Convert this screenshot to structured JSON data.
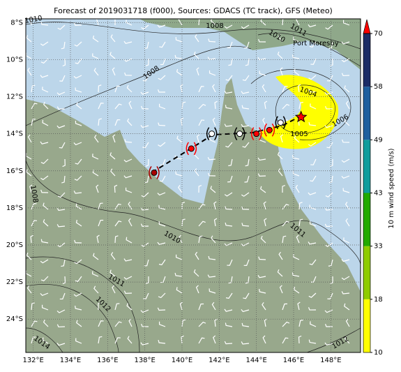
{
  "title": "Forecast of 2019031718 (f000), Sources: GDACS (TC track), GFS (Meteo)",
  "map": {
    "lonlim": [
      131.6,
      149.6
    ],
    "latlim": [
      -7.8,
      -25.8
    ],
    "grid": true,
    "lonticks": [
      {
        "value": 132,
        "label": "132°E"
      },
      {
        "value": 134,
        "label": "134°E"
      },
      {
        "value": 136,
        "label": "136°E"
      },
      {
        "value": 138,
        "label": "138°E"
      },
      {
        "value": 140,
        "label": "140°E"
      },
      {
        "value": 142,
        "label": "142°E"
      },
      {
        "value": 144,
        "label": "144°E"
      },
      {
        "value": 146,
        "label": "146°E"
      },
      {
        "value": 148,
        "label": "148°E"
      }
    ],
    "latticks": [
      {
        "value": -8,
        "label": "8°S"
      },
      {
        "value": -10,
        "label": "10°S"
      },
      {
        "value": -12,
        "label": "12°S"
      },
      {
        "value": -14,
        "label": "14°S"
      },
      {
        "value": -16,
        "label": "16°S"
      },
      {
        "value": -18,
        "label": "18°S"
      },
      {
        "value": -20,
        "label": "20°S"
      },
      {
        "value": -22,
        "label": "22°S"
      },
      {
        "value": -24,
        "label": "24°S"
      }
    ]
  },
  "colorbar": {
    "label": "10 m wind speed (m/s)",
    "ticks": [
      10,
      18,
      33,
      43,
      49,
      58,
      70
    ],
    "colors": [
      "#ffff00",
      "#8fcc00",
      "#22aa00",
      "#119c9c",
      "#1f5f9e",
      "#1c2c66"
    ],
    "extend_color": "#ff0000"
  },
  "place": "Port Moresby",
  "contour_levels": [
    1010,
    1008,
    1011,
    1010,
    1008,
    1004,
    1006,
    1005,
    1008,
    1010,
    1011,
    1011,
    1012,
    1014,
    1012
  ],
  "track": [
    {
      "lon": 138.5,
      "lat": -16.1,
      "color": "#aa0000"
    },
    {
      "lon": 140.5,
      "lat": -14.8,
      "color": "#ff0000"
    },
    {
      "lon": 141.6,
      "lat": -14.0,
      "color": "#ffffff"
    },
    {
      "lon": 143.1,
      "lat": -14.0,
      "color": "#ffffff"
    },
    {
      "lon": 144.0,
      "lat": -14.0,
      "color": "#ff0000"
    },
    {
      "lon": 144.7,
      "lat": -13.8,
      "color": "#ff0000"
    },
    {
      "lon": 145.3,
      "lat": -13.4,
      "color": "#ffffff"
    },
    {
      "lon": 146.4,
      "lat": -13.1,
      "color": "#ff0000"
    }
  ]
}
